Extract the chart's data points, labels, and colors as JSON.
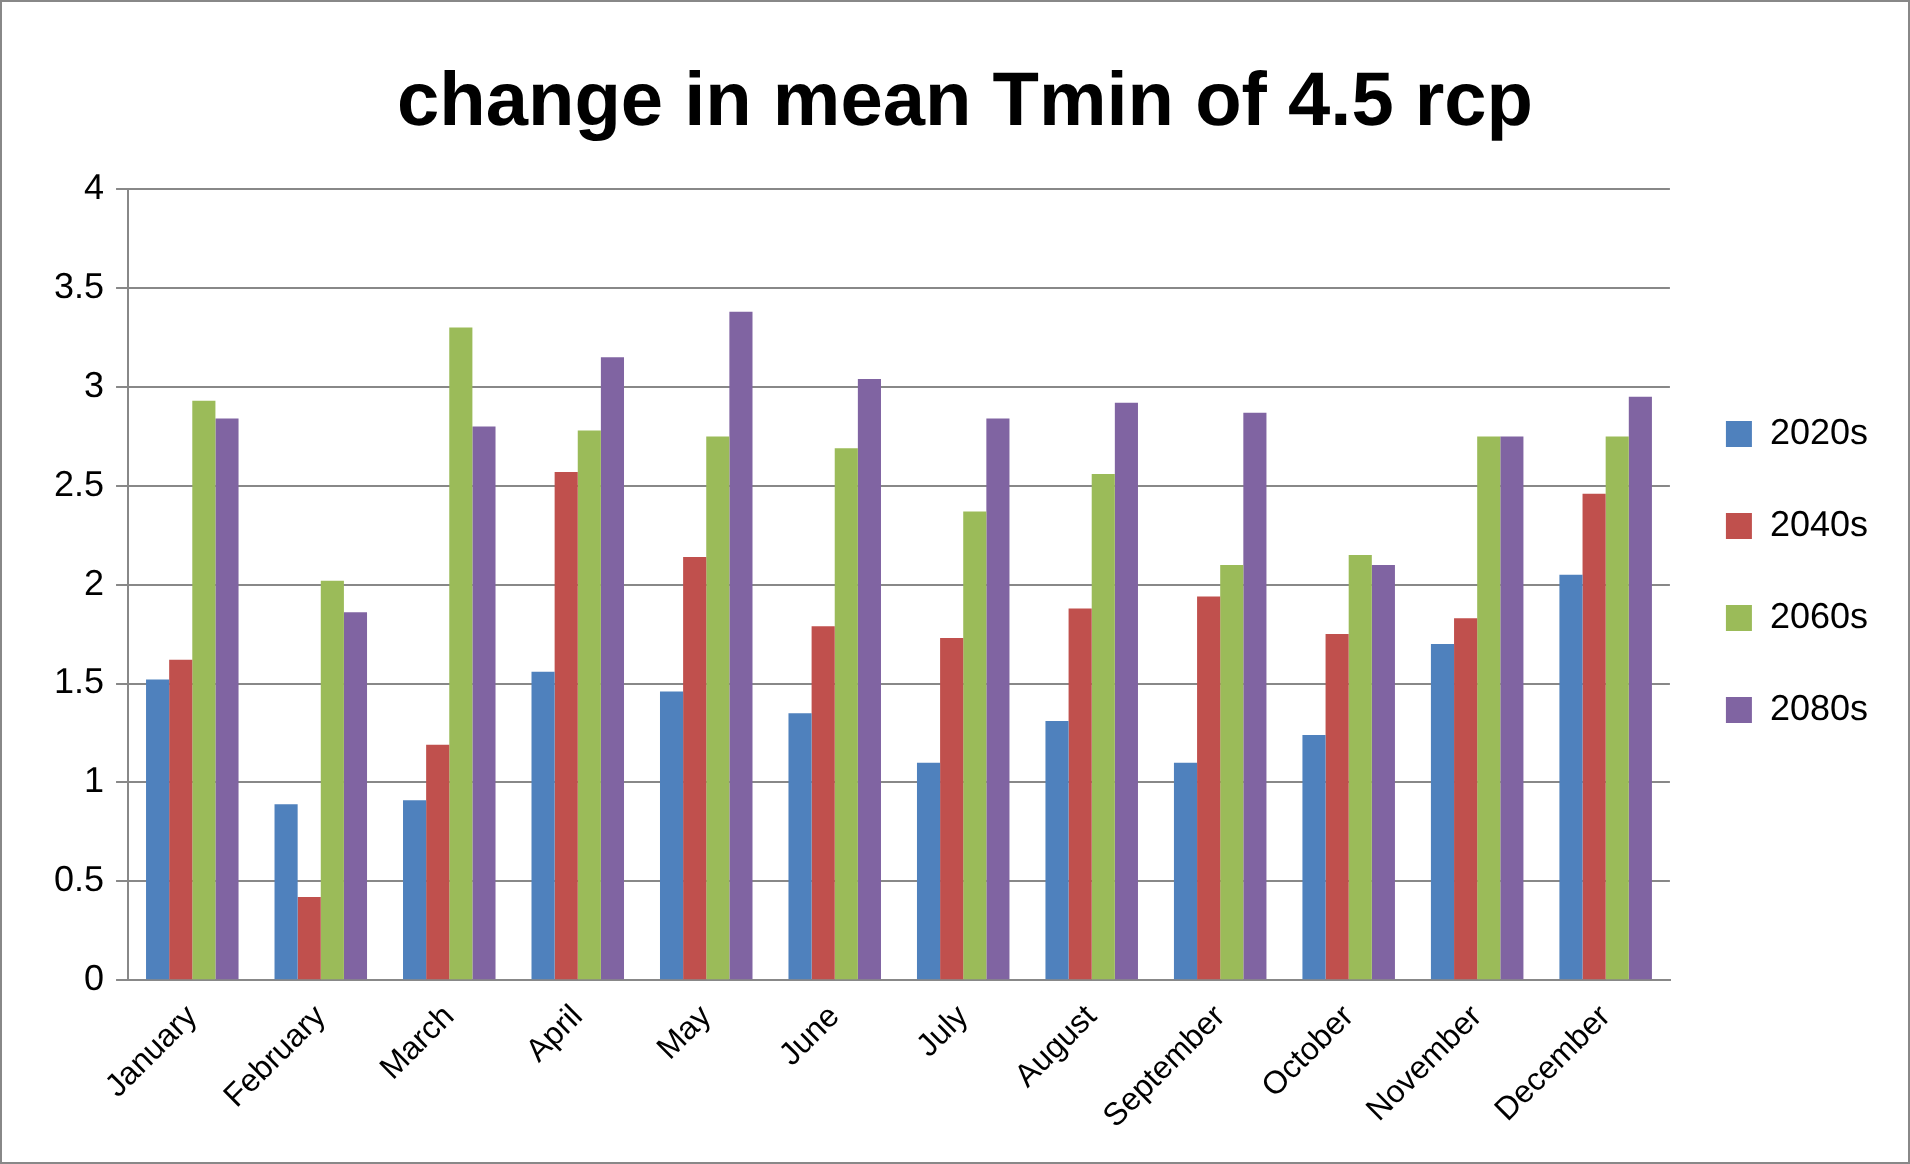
{
  "chart_data": {
    "type": "bar",
    "title": "change in mean Tmin of 4.5 rcp",
    "categories": [
      "January",
      "February",
      "March",
      "April",
      "May",
      "June",
      "July",
      "August",
      "September",
      "October",
      "November",
      "December"
    ],
    "series": [
      {
        "name": "2020s",
        "color": "#4f81bd",
        "values": [
          1.52,
          0.89,
          0.91,
          1.56,
          1.46,
          1.35,
          1.1,
          1.31,
          1.1,
          1.24,
          1.7,
          2.05
        ]
      },
      {
        "name": "2040s",
        "color": "#c0504d",
        "values": [
          1.62,
          0.42,
          1.19,
          2.57,
          2.14,
          1.79,
          1.73,
          1.88,
          1.94,
          1.75,
          1.83,
          2.46
        ]
      },
      {
        "name": "2060s",
        "color": "#9bbb59",
        "values": [
          2.93,
          2.02,
          3.3,
          2.78,
          2.75,
          2.69,
          2.37,
          2.56,
          2.1,
          2.15,
          2.75,
          2.75
        ]
      },
      {
        "name": "2080s",
        "color": "#8064a2",
        "values": [
          2.84,
          1.86,
          2.8,
          3.15,
          3.38,
          3.04,
          2.84,
          2.92,
          2.87,
          2.1,
          2.75,
          2.95
        ]
      }
    ],
    "ylim": [
      0,
      4
    ],
    "yticks": [
      0,
      0.5,
      1,
      1.5,
      2,
      2.5,
      3,
      3.5,
      4
    ],
    "grid": "y",
    "legend": "right"
  }
}
